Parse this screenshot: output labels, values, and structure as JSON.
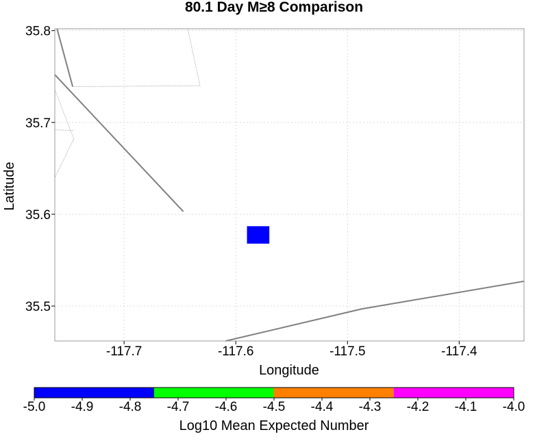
{
  "chart_data": {
    "type": "heatmap",
    "title": "80.1 Day M≥8 Comparison",
    "xlabel": "Longitude",
    "ylabel": "Latitude",
    "xlim": [
      -117.762,
      -117.342
    ],
    "ylim": [
      35.462,
      35.802
    ],
    "xticks": [
      -117.7,
      -117.6,
      -117.5,
      -117.4
    ],
    "xtick_labels": [
      "-117.7",
      "-117.6",
      "-117.5",
      "-117.4"
    ],
    "yticks": [
      35.5,
      35.6,
      35.7,
      35.8
    ],
    "ytick_labels": [
      "35.5",
      "35.6",
      "35.7",
      "35.8"
    ],
    "grid": true,
    "cells": [
      {
        "lon_min": -117.59,
        "lon_max": -117.57,
        "lat_min": 35.568,
        "lat_max": 35.587,
        "value": -5.0,
        "color": "#0000ff"
      }
    ],
    "fault_lines": [
      {
        "style": "solid",
        "points": [
          [
            -117.762,
            35.752
          ],
          [
            -117.647,
            35.603
          ]
        ]
      },
      {
        "style": "solid",
        "points": [
          [
            -117.76,
            35.802
          ],
          [
            -117.746,
            35.739
          ]
        ]
      },
      {
        "style": "solid",
        "points": [
          [
            -117.609,
            35.462
          ],
          [
            -117.487,
            35.497
          ],
          [
            -117.342,
            35.527
          ]
        ]
      }
    ],
    "boundary_lines": [
      {
        "points": [
          [
            -117.746,
            35.739
          ],
          [
            -117.632,
            35.74
          ],
          [
            -117.643,
            35.802
          ]
        ]
      },
      {
        "points": [
          [
            -117.762,
            35.736
          ],
          [
            -117.745,
            35.682
          ],
          [
            -117.762,
            35.64
          ]
        ]
      },
      {
        "points": [
          [
            -117.762,
            35.692
          ],
          [
            -117.745,
            35.691
          ]
        ]
      }
    ],
    "colorbar": {
      "label": "Log10 Mean Expected Number",
      "range": [
        -5.0,
        -4.0
      ],
      "ticks": [
        -5.0,
        -4.9,
        -4.8,
        -4.7,
        -4.6,
        -4.5,
        -4.4,
        -4.3,
        -4.2,
        -4.1,
        -4.0
      ],
      "tick_labels": [
        "-5.0",
        "-4.9",
        "-4.8",
        "-4.7",
        "-4.6",
        "-4.5",
        "-4.4",
        "-4.3",
        "-4.2",
        "-4.1",
        "-4.0"
      ],
      "bins": [
        {
          "from": -5.0,
          "to": -4.75,
          "color": "#0000ff"
        },
        {
          "from": -4.75,
          "to": -4.5,
          "color": "#00ff00"
        },
        {
          "from": -4.5,
          "to": -4.25,
          "color": "#ff8000"
        },
        {
          "from": -4.25,
          "to": -4.0,
          "color": "#ff00ff"
        }
      ]
    },
    "colors": {
      "fault": "#7f7f7f",
      "boundary": "#808080",
      "grid": "#d4d4d4",
      "frame": "#999999"
    }
  }
}
